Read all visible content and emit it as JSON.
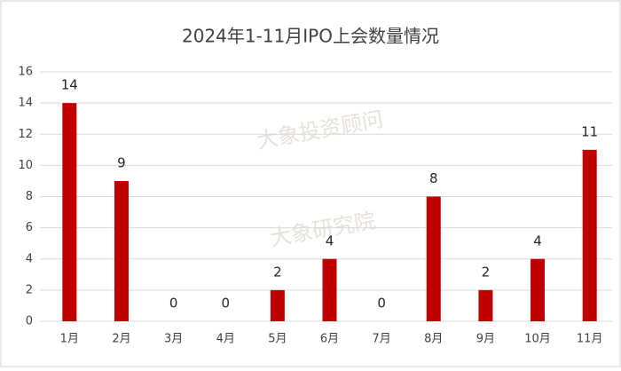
{
  "chart_data": {
    "type": "bar",
    "title": "2024年1-11月IPO上会数量情况",
    "categories": [
      "1月",
      "2月",
      "3月",
      "4月",
      "5月",
      "6月",
      "7月",
      "8月",
      "9月",
      "10月",
      "11月"
    ],
    "values": [
      14,
      9,
      0,
      0,
      2,
      4,
      0,
      8,
      2,
      4,
      11
    ],
    "color": "#c00000",
    "ylim": [
      0,
      16
    ],
    "yticks": [
      0,
      2,
      4,
      6,
      8,
      10,
      12,
      14,
      16
    ],
    "grid": true,
    "watermarks": [
      "大象投资顾问",
      "大象研究院"
    ]
  }
}
